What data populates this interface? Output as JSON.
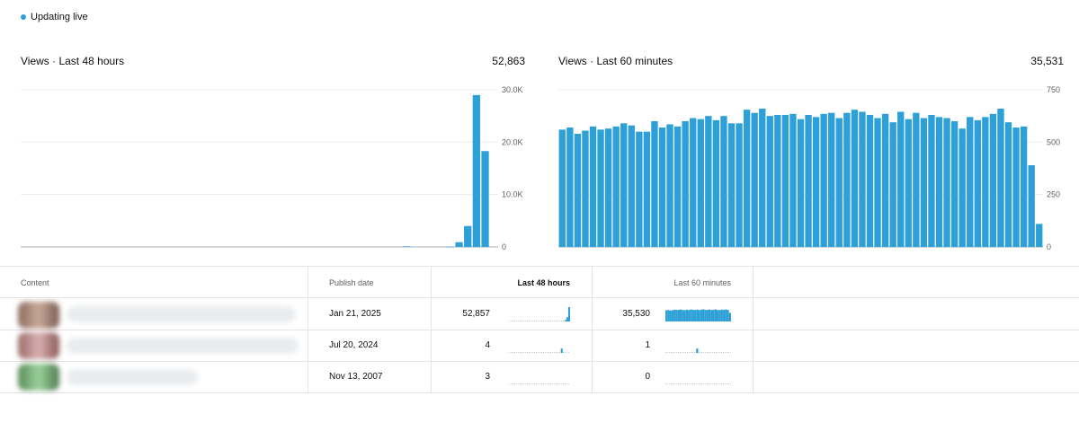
{
  "status": {
    "live_label": "Updating live",
    "dot_color": "#2ea0d8"
  },
  "accent_color": "#2ea0d8",
  "panels": {
    "left": {
      "title": "Views · Last 48 hours",
      "total": "52,863"
    },
    "right": {
      "title": "Views · Last 60 minutes",
      "total": "35,531"
    }
  },
  "chart_data": [
    {
      "type": "bar",
      "title": "Views · Last 48 hours",
      "ylim": [
        0,
        30000
      ],
      "yticks": [
        0,
        10000,
        20000,
        30000
      ],
      "ytick_labels": [
        "0",
        "10.0K",
        "20.0K",
        "30.0K"
      ],
      "values": [
        0,
        0,
        0,
        0,
        0,
        0,
        0,
        0,
        0,
        0,
        0,
        0,
        0,
        0,
        0,
        0,
        0,
        0,
        0,
        0,
        0,
        0,
        0,
        0,
        0,
        0,
        0,
        0,
        0,
        0,
        0,
        0,
        0,
        0,
        0,
        0,
        0,
        0,
        0,
        0,
        0,
        0,
        0,
        0,
        120,
        0,
        0,
        0,
        0,
        30,
        900,
        4000,
        29000,
        18300,
        0
      ]
    },
    {
      "type": "bar",
      "title": "Views · Last 60 minutes",
      "ylim": [
        0,
        750
      ],
      "yticks": [
        0,
        250,
        500,
        750
      ],
      "ytick_labels": [
        "0",
        "250",
        "500",
        "750"
      ],
      "values": [
        560,
        570,
        540,
        555,
        575,
        560,
        565,
        575,
        590,
        580,
        550,
        550,
        600,
        570,
        585,
        575,
        600,
        615,
        610,
        625,
        605,
        625,
        590,
        590,
        655,
        640,
        660,
        625,
        630,
        630,
        635,
        610,
        630,
        620,
        635,
        640,
        615,
        640,
        655,
        645,
        630,
        615,
        635,
        595,
        645,
        610,
        640,
        615,
        630,
        620,
        615,
        600,
        565,
        620,
        605,
        620,
        635,
        660,
        595,
        570,
        575,
        390,
        110
      ]
    }
  ],
  "table": {
    "headers": {
      "content": "Content",
      "publish": "Publish date",
      "last48": "Last 48 hours",
      "last60": "Last 60 minutes"
    },
    "rows": [
      {
        "date": "Jan 21, 2025",
        "views48": "52,857",
        "views60": "35,530",
        "spark48": [
          0,
          0,
          0,
          0,
          0,
          0,
          0,
          0,
          0,
          0,
          0,
          0,
          0,
          0,
          0,
          0,
          0,
          0,
          0,
          0,
          0,
          0,
          0,
          0,
          0,
          0,
          0,
          0,
          0,
          0,
          1,
          3,
          10
        ],
        "spark60": [
          0.78,
          0.8,
          0.76,
          0.79,
          0.82,
          0.8,
          0.81,
          0.83,
          0.8,
          0.79,
          0.82,
          0.8,
          0.84,
          0.81,
          0.8,
          0.83,
          0.79,
          0.82,
          0.85,
          0.8,
          0.81,
          0.83,
          0.8,
          0.82,
          0.84,
          0.8,
          0.79,
          0.83,
          0.81,
          0.84,
          0.8,
          0.6
        ]
      },
      {
        "date": "Jul 20, 2024",
        "views48": "4",
        "views60": "1",
        "spark48": [
          0,
          0,
          0,
          0,
          0,
          0,
          0,
          0,
          0,
          0,
          0,
          0,
          0,
          0,
          0,
          0,
          0,
          0,
          0,
          0,
          0,
          0,
          0,
          0,
          0,
          0,
          0,
          0,
          0.3,
          0,
          0,
          0,
          0
        ],
        "spark60": [
          0,
          0,
          0,
          0,
          0,
          0,
          0,
          0,
          0,
          0,
          0,
          0,
          0,
          0,
          0,
          0.3,
          0,
          0,
          0,
          0,
          0,
          0,
          0,
          0,
          0,
          0,
          0,
          0,
          0,
          0,
          0,
          0
        ]
      },
      {
        "date": "Nov 13, 2007",
        "views48": "3",
        "views60": "0",
        "spark48": [
          0,
          0,
          0,
          0,
          0,
          0,
          0,
          0,
          0,
          0,
          0,
          0,
          0,
          0,
          0,
          0,
          0,
          0,
          0,
          0,
          0,
          0,
          0,
          0,
          0,
          0,
          0,
          0,
          0,
          0,
          0,
          0,
          0
        ],
        "spark60": [
          0,
          0,
          0,
          0,
          0,
          0,
          0,
          0,
          0,
          0,
          0,
          0,
          0,
          0,
          0,
          0,
          0,
          0,
          0,
          0,
          0,
          0,
          0,
          0,
          0,
          0,
          0,
          0,
          0,
          0,
          0,
          0
        ]
      }
    ]
  }
}
